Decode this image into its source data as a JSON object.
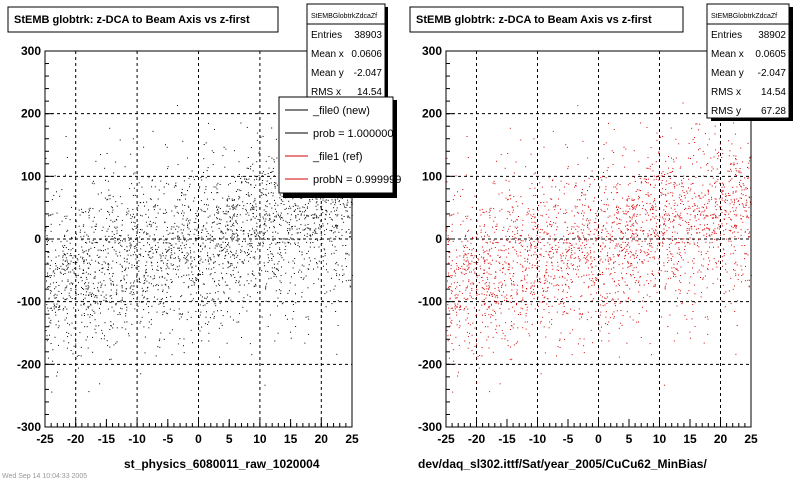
{
  "colors": {
    "file0": "#000000",
    "file1": "#d40000",
    "background": "#ffffff"
  },
  "left_panel": {
    "title": "StEMB globtrk: z-DCA to Beam Axis vs z-first",
    "stats": {
      "name": "StEMBGlobtrkZdcaZf",
      "rows": [
        {
          "label": "Entries",
          "value": "38903"
        },
        {
          "label": "Mean x",
          "value": "0.0606"
        },
        {
          "label": "Mean y",
          "value": "-2.047"
        },
        {
          "label": "RMS x",
          "value": "14.54"
        }
      ]
    },
    "legend": [
      {
        "label": "_file0 (new)",
        "color": "#000000"
      },
      {
        "label": "prob = 1.000000",
        "color": "#000000"
      },
      {
        "label": "_file1 (ref)",
        "color": "#d40000"
      },
      {
        "label": "probN = 0.999999",
        "color": "#d40000"
      }
    ],
    "xlabel": "st_physics_6080011_raw_1020004",
    "footer_note": "Wed Sep 14 10:04:33 2005"
  },
  "right_panel": {
    "title": "StEMB globtrk: z-DCA to Beam Axis vs z-first",
    "stats": {
      "name": "StEMBGlobtrkZdcaZf",
      "rows": [
        {
          "label": "Entries",
          "value": "38902"
        },
        {
          "label": "Mean x",
          "value": "0.0605"
        },
        {
          "label": "Mean y",
          "value": "-2.047"
        },
        {
          "label": "RMS x",
          "value": "14.54"
        },
        {
          "label": "RMS y",
          "value": "67.28"
        }
      ]
    },
    "xlabel": "dev/daq_sl302.ittf/Sat/year_2005/CuCu62_MinBias/"
  },
  "chart_data": [
    {
      "type": "scatter",
      "title": "StEMB globtrk: z-DCA to Beam Axis vs z-first",
      "xlabel": "st_physics_6080011_raw_1020004",
      "ylabel": "",
      "xlim": [
        -25,
        25
      ],
      "ylim": [
        -300,
        300
      ],
      "x_ticks": [
        -25,
        -20,
        -15,
        -10,
        -5,
        0,
        5,
        10,
        15,
        20,
        25
      ],
      "y_ticks": [
        -300,
        -200,
        -100,
        0,
        100,
        200,
        300
      ],
      "grid": true,
      "series": [
        {
          "name": "_file0 (new)",
          "color": "#000000",
          "entries": 38903,
          "mean_x": 0.0606,
          "mean_y": -2.047,
          "rms_x": 14.54
        }
      ]
    },
    {
      "type": "scatter",
      "title": "StEMB globtrk: z-DCA to Beam Axis vs z-first",
      "xlabel": "dev/daq_sl302.ittf/Sat/year_2005/CuCu62_MinBias/",
      "ylabel": "",
      "xlim": [
        -25,
        25
      ],
      "ylim": [
        -300,
        300
      ],
      "x_ticks": [
        -25,
        -20,
        -15,
        -10,
        -5,
        0,
        5,
        10,
        15,
        20,
        25
      ],
      "y_ticks": [
        -300,
        -200,
        -100,
        0,
        100,
        200,
        300
      ],
      "grid": true,
      "series": [
        {
          "name": "_file1 (ref)",
          "color": "#d40000",
          "entries": 38902,
          "mean_x": 0.0605,
          "mean_y": -2.047,
          "rms_x": 14.54,
          "rms_y": 67.28
        }
      ]
    }
  ]
}
